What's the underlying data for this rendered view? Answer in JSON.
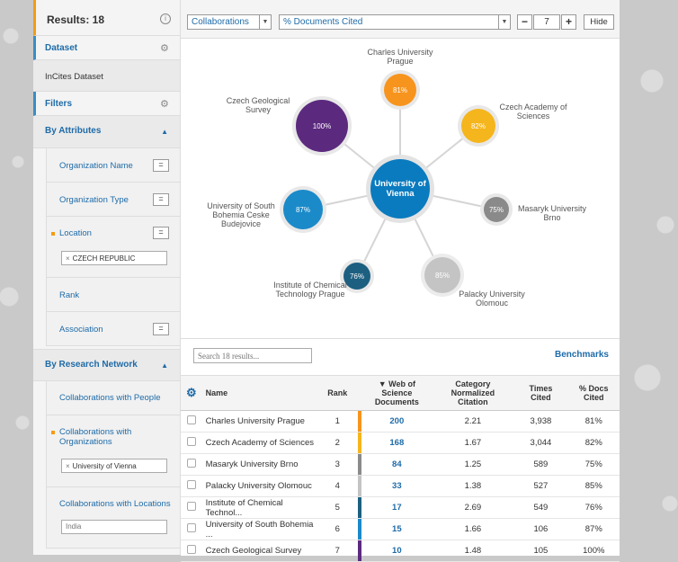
{
  "sidebar": {
    "results_label": "Results: 18",
    "dataset_header": "Dataset",
    "dataset_value": "InCites Dataset",
    "filters_header": "Filters",
    "by_attributes": "By Attributes",
    "org_name": "Organization Name",
    "org_type": "Organization Type",
    "location": "Location",
    "location_tag": "CZECH REPUBLIC",
    "rank": "Rank",
    "association": "Association",
    "by_research_network": "By Research Network",
    "collab_people": "Collaborations with People",
    "collab_orgs": "Collaborations with Organizations",
    "collab_orgs_tag": "University of Vienna",
    "collab_locations": "Collaborations with Locations",
    "collab_locations_placeholder": "India",
    "eq": "="
  },
  "toolbar": {
    "view_select": "Collaborations",
    "metric_select": "% Documents Cited",
    "minus": "−",
    "count": "7",
    "plus": "+",
    "hide_label": "Hide"
  },
  "network": {
    "center": {
      "label": "University of Vienna",
      "color": "#0a7bbf"
    },
    "nodes": [
      {
        "name": "Charles University Prague",
        "pct": "81%",
        "color": "#f7941d"
      },
      {
        "name": "Czech Academy of Sciences",
        "pct": "82%",
        "color": "#f5b51c"
      },
      {
        "name": "Masaryk University Brno",
        "pct": "75%",
        "color": "#8a8a8a"
      },
      {
        "name": "Palacky University Olomouc",
        "pct": "85%",
        "color": "#c4c4c4"
      },
      {
        "name": "Institute of Chemical Technology Prague",
        "pct": "76%",
        "color": "#1d5f80"
      },
      {
        "name": "University of South Bohemia Ceske Budejovice",
        "pct": "87%",
        "color": "#1b8ac9"
      },
      {
        "name": "Czech Geological Survey",
        "pct": "100%",
        "color": "#5b2a7e"
      }
    ]
  },
  "table": {
    "search_placeholder": "Search 18 results...",
    "benchmarks": "Benchmarks",
    "headers": {
      "name": "Name",
      "rank": "Rank",
      "wos": "▼ Web of Science Documents",
      "cnc": "Category Normalized Citation",
      "times": "Times Cited",
      "pct": "% Docs Cited"
    },
    "rows": [
      {
        "name": "Charles University Prague",
        "rank": "1",
        "wos": "200",
        "cnc": "2.21",
        "times": "3,938",
        "pct": "81%",
        "color": "#f7941d"
      },
      {
        "name": "Czech Academy of Sciences",
        "rank": "2",
        "wos": "168",
        "cnc": "1.67",
        "times": "3,044",
        "pct": "82%",
        "color": "#f5b51c"
      },
      {
        "name": "Masaryk University Brno",
        "rank": "3",
        "wos": "84",
        "cnc": "1.25",
        "times": "589",
        "pct": "75%",
        "color": "#8a8a8a"
      },
      {
        "name": "Palacky University Olomouc",
        "rank": "4",
        "wos": "33",
        "cnc": "1.38",
        "times": "527",
        "pct": "85%",
        "color": "#c4c4c4"
      },
      {
        "name": "Institute of Chemical Technol...",
        "rank": "5",
        "wos": "17",
        "cnc": "2.69",
        "times": "549",
        "pct": "76%",
        "color": "#1d5f80"
      },
      {
        "name": "University of South Bohemia ...",
        "rank": "6",
        "wos": "15",
        "cnc": "1.66",
        "times": "106",
        "pct": "87%",
        "color": "#1b8ac9"
      },
      {
        "name": "Czech Geological Survey",
        "rank": "7",
        "wos": "10",
        "cnc": "1.48",
        "times": "105",
        "pct": "100%",
        "color": "#5b2a7e"
      }
    ]
  }
}
